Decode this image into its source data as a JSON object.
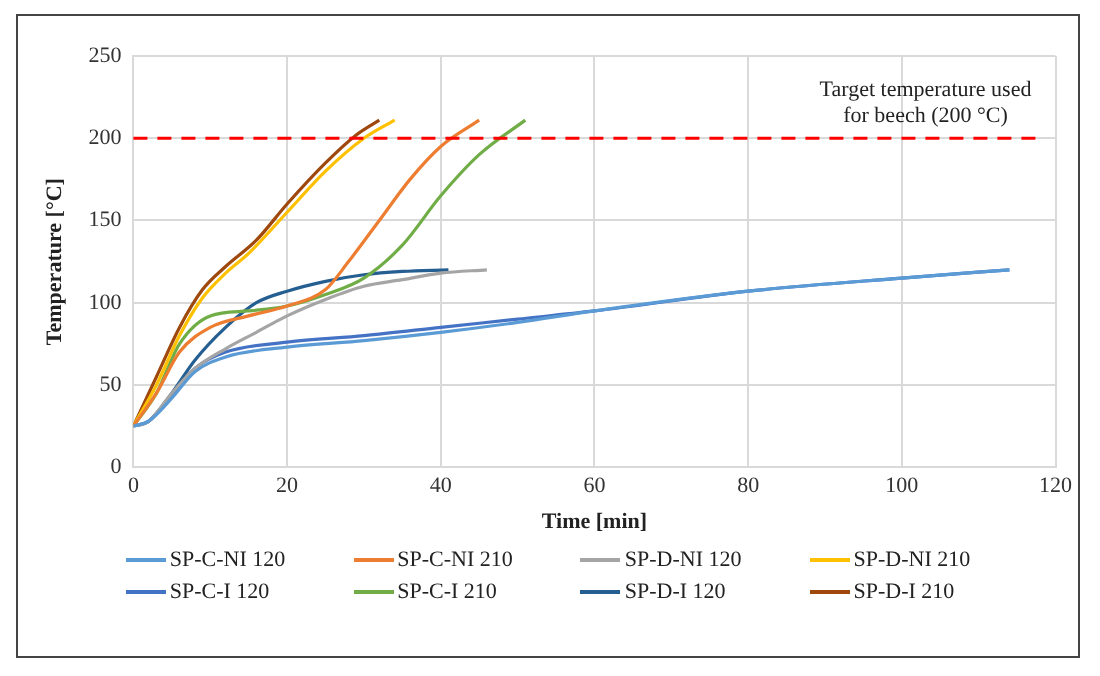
{
  "chart_data": {
    "type": "line",
    "xlabel": "Time [min]",
    "ylabel": "Temperature [°C]",
    "xlim": [
      0,
      120
    ],
    "xticks": [
      0,
      20,
      40,
      60,
      80,
      100,
      120
    ],
    "ylim": [
      0,
      250
    ],
    "yticks": [
      0,
      50,
      100,
      150,
      200,
      250
    ],
    "grid": true,
    "legend": "bottom",
    "marker": "none",
    "line_style": "solid",
    "ref_lines": [
      {
        "axis": "y",
        "value": 200,
        "label": "Target temperature used for beech (200 °C)",
        "color": "#ff0000",
        "line_style": "dashed"
      }
    ],
    "series": [
      {
        "name": "SP-C-NI 120",
        "color": "#5b9bd5",
        "x": [
          0,
          2,
          5,
          8,
          12,
          20,
          30,
          40,
          50,
          60,
          80,
          100,
          114
        ],
        "values": [
          25,
          28,
          42,
          58,
          67,
          73,
          77,
          82,
          88,
          95,
          107,
          115,
          120
        ]
      },
      {
        "name": "SP-C-NI 210",
        "color": "#ed7d31",
        "x": [
          0,
          3,
          6,
          10,
          15,
          20,
          25,
          28,
          32,
          36,
          40,
          45
        ],
        "values": [
          25,
          45,
          70,
          85,
          92,
          98,
          108,
          125,
          150,
          175,
          195,
          211
        ]
      },
      {
        "name": "SP-D-NI 120",
        "color": "#a5a5a5",
        "x": [
          0,
          2,
          5,
          8,
          12,
          16,
          20,
          25,
          30,
          35,
          40,
          46
        ],
        "values": [
          25,
          28,
          45,
          60,
          72,
          82,
          92,
          102,
          110,
          114,
          118,
          120
        ]
      },
      {
        "name": "SP-D-NI 210",
        "color": "#ffc000",
        "x": [
          0,
          3,
          6,
          9,
          12,
          15,
          20,
          25,
          30,
          34
        ],
        "values": [
          25,
          50,
          80,
          103,
          118,
          130,
          155,
          180,
          200,
          211
        ]
      },
      {
        "name": "SP-C-I 120",
        "color": "#4472c4",
        "x": [
          0,
          2,
          5,
          8,
          12,
          20,
          30,
          40,
          50,
          60,
          80,
          100,
          114
        ],
        "values": [
          25,
          28,
          44,
          60,
          70,
          76,
          80,
          85,
          90,
          95,
          107,
          115,
          120
        ]
      },
      {
        "name": "SP-C-I 210",
        "color": "#70ad47",
        "x": [
          0,
          3,
          6,
          10,
          15,
          20,
          25,
          30,
          35,
          40,
          45,
          51
        ],
        "values": [
          25,
          45,
          75,
          92,
          95,
          98,
          105,
          115,
          135,
          165,
          190,
          211
        ]
      },
      {
        "name": "SP-D-I 120",
        "color": "#255e91",
        "x": [
          0,
          2,
          5,
          8,
          12,
          16,
          20,
          25,
          30,
          35,
          41
        ],
        "values": [
          25,
          28,
          45,
          65,
          85,
          100,
          107,
          113,
          117,
          119,
          120
        ]
      },
      {
        "name": "SP-D-I 210",
        "color": "#9e480e",
        "x": [
          0,
          3,
          6,
          9,
          12,
          16,
          20,
          25,
          29,
          32
        ],
        "values": [
          25,
          55,
          85,
          108,
          122,
          138,
          160,
          185,
          202,
          211
        ]
      }
    ]
  }
}
